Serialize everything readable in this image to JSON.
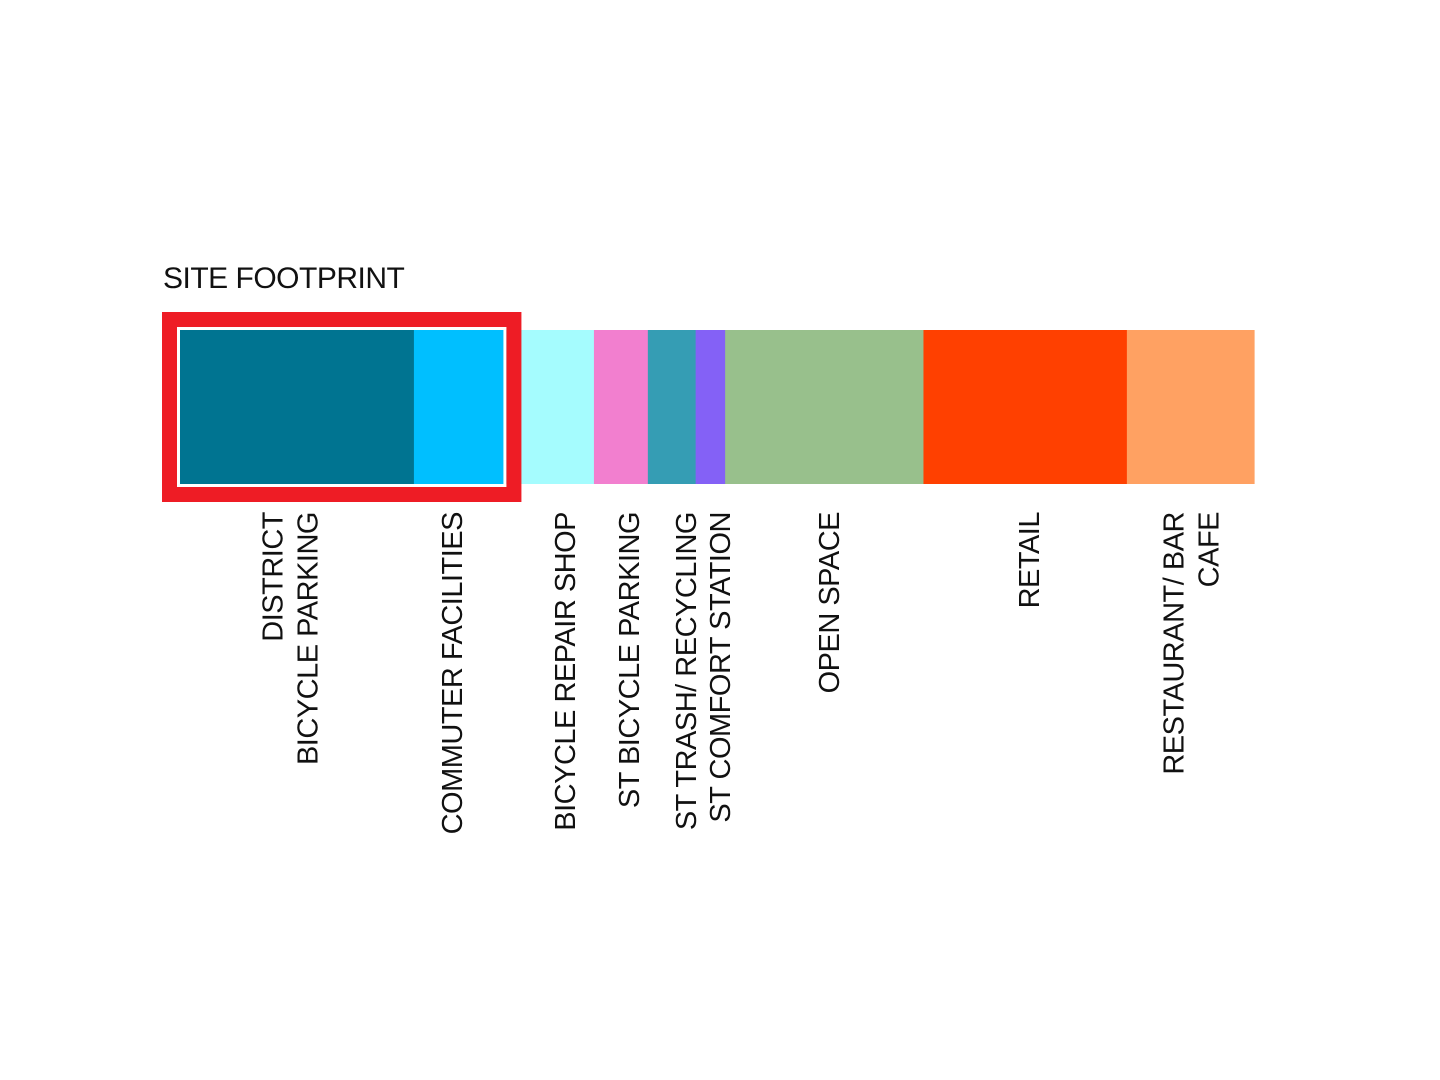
{
  "title": "SITE FOOTPRINT",
  "highlight_color": "#ee1c25",
  "chart_data": {
    "type": "bar",
    "orientation": "horizontal-stacked",
    "title": "SITE FOOTPRINT",
    "xlabel": "",
    "ylabel": "",
    "grid": false,
    "highlighted_categories": [
      "DISTRICT BICYCLE PARKING",
      "COMMUTER FACILITIES"
    ],
    "categories": [
      "DISTRICT BICYCLE PARKING",
      "COMMUTER FACILITIES",
      "",
      "BICYCLE REPAIR SHOP",
      "ST BICYCLE PARKING",
      "ST TRASH/ RECYCLING",
      "ST COMFORT STATION",
      "OPEN SPACE",
      "RETAIL",
      "RESTAURANT/ BAR CAFE"
    ],
    "values": [
      230,
      88,
      10,
      79,
      53,
      47,
      29,
      195,
      200,
      125
    ],
    "colors": [
      "#007491",
      "#00bfff",
      "#00bfff",
      "#a5fcfe",
      "#f27fcf",
      "#359db4",
      "#8461f6",
      "#98c08c",
      "#ff4000",
      "#ffa162"
    ],
    "label_lines": [
      [
        "DISTRICT",
        "BICYCLE PARKING"
      ],
      [
        "COMMUTER FACILITIES"
      ],
      [],
      [
        "BICYCLE REPAIR SHOP"
      ],
      [
        "ST BICYCLE PARKING"
      ],
      [
        "ST TRASH/ RECYCLING"
      ],
      [
        "ST COMFORT STATION"
      ],
      [
        "OPEN SPACE"
      ],
      [
        "RETAIL"
      ],
      [
        "RESTAURANT/ BAR",
        "CAFE"
      ]
    ]
  }
}
